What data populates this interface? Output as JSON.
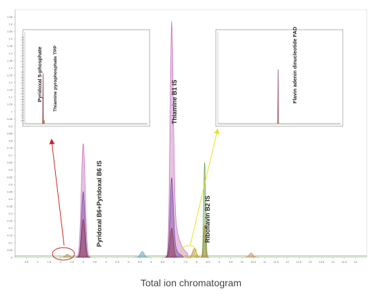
{
  "caption": "Total ion chromatogram",
  "colors": {
    "purple": "#c878c0",
    "darkpurple": "#7a4aa0",
    "maroon": "#8c3a4a",
    "green": "#6aa84f",
    "olive": "#b08a3a",
    "teal": "#5aa0b0",
    "orange": "#d08a50",
    "red_arrow": "#cc2222",
    "yellow_arrow": "#e8e022"
  },
  "chart_data": {
    "type": "line",
    "main": {
      "yticks": [
        "0",
        "0.05",
        "0.1",
        "0.15",
        "0.2",
        "0.25",
        "0.3",
        "0.35",
        "0.4",
        "0.45",
        "0.5",
        "0.55",
        "0.6",
        "0.65",
        "0.7",
        "0.75",
        "0.8",
        "0.85",
        "0.9",
        "0.95",
        "1",
        "1.05",
        "1.1",
        "1.15",
        "1.2",
        "1.25",
        "1.3",
        "1.35",
        "1.4",
        "1.45",
        "1.5",
        "1.55",
        "1.6",
        "1.65"
      ],
      "xticks": [
        "0.5",
        "1",
        "1.5",
        "2",
        "2.5",
        "3",
        "3.5",
        "4",
        "4.5",
        "5",
        "5.5",
        "6",
        "6.5",
        "7",
        "7.5",
        "8",
        "8.5",
        "9",
        "9.5",
        "10",
        "10.5",
        "11",
        "11.5",
        "12",
        "12.5",
        "13",
        "13.5",
        "14",
        "14.5",
        "15"
      ],
      "xlim": [
        0,
        15.5
      ],
      "ylim": [
        0,
        1.7
      ],
      "peaks": [
        {
          "label": "Pyridoxal B6+Pyridoxal B6 IS",
          "rt": 3.0,
          "series": [
            {
              "color_key": "purple",
              "height": 0.78,
              "width": 0.12
            },
            {
              "color_key": "darkpurple",
              "height": 0.45,
              "width": 0.1
            },
            {
              "color_key": "maroon",
              "height": 0.26,
              "width": 0.1
            }
          ]
        },
        {
          "label": "Thiamine B1 IS",
          "rt": 6.9,
          "series": [
            {
              "color_key": "purple",
              "height": 1.62,
              "width": 0.1,
              "tail": 0.7
            },
            {
              "color_key": "darkpurple",
              "height": 0.55,
              "width": 0.1,
              "tail": 0.5
            },
            {
              "color_key": "maroon",
              "height": 0.2,
              "width": 0.1
            }
          ]
        },
        {
          "label": "Riboflavin B2 IS",
          "rt": 8.35,
          "series": [
            {
              "color_key": "green",
              "height": 0.65,
              "width": 0.06
            },
            {
              "color_key": "olive",
              "height": 0.22,
              "width": 0.06
            }
          ]
        }
      ],
      "small_peaks": [
        {
          "rt": 2.3,
          "height": 0.02,
          "color_key": "olive"
        },
        {
          "rt": 5.6,
          "height": 0.04,
          "color_key": "teal"
        },
        {
          "rt": 7.9,
          "height": 0.06,
          "color_key": "olive"
        },
        {
          "rt": 10.4,
          "height": 0.03,
          "color_key": "orange"
        }
      ]
    },
    "insets": [
      {
        "labels": [
          "Pyridoxal 5-phosphate",
          "Thiamine pyrophosphate TPP"
        ],
        "peaks": [
          {
            "rt": 2.3,
            "height": 0.93,
            "color_key": "maroon"
          },
          {
            "rt": 2.45,
            "height": 0.06,
            "color_key": "olive"
          }
        ],
        "xlim": [
          0,
          15.5
        ],
        "ylim": [
          0,
          1.7
        ],
        "yticks": [
          "0",
          "0.05",
          "0.1",
          "0.15",
          "0.2",
          "0.25",
          "0.3",
          "0.35",
          "0.4",
          "0.45",
          "0.5",
          "0.55",
          "0.6",
          "0.65",
          "0.7",
          "0.75",
          "0.8",
          "0.85",
          "0.9",
          "0.95",
          "1",
          "1.05",
          "1.1",
          "1.15",
          "1.2",
          "1.25",
          "1.3",
          "1.35",
          "1.4",
          "1.45",
          "1.5",
          "1.55",
          "1.6"
        ]
      },
      {
        "labels": [
          "Flavin adenin dinucleotide FAD"
        ],
        "peaks": [
          {
            "rt": 7.6,
            "height": 1.0,
            "color_key": "maroon"
          },
          {
            "rt": 7.65,
            "height": 0.05,
            "color_key": "olive"
          }
        ],
        "xlim": [
          0,
          15.5
        ],
        "ylim": [
          0,
          1.7
        ]
      }
    ]
  }
}
